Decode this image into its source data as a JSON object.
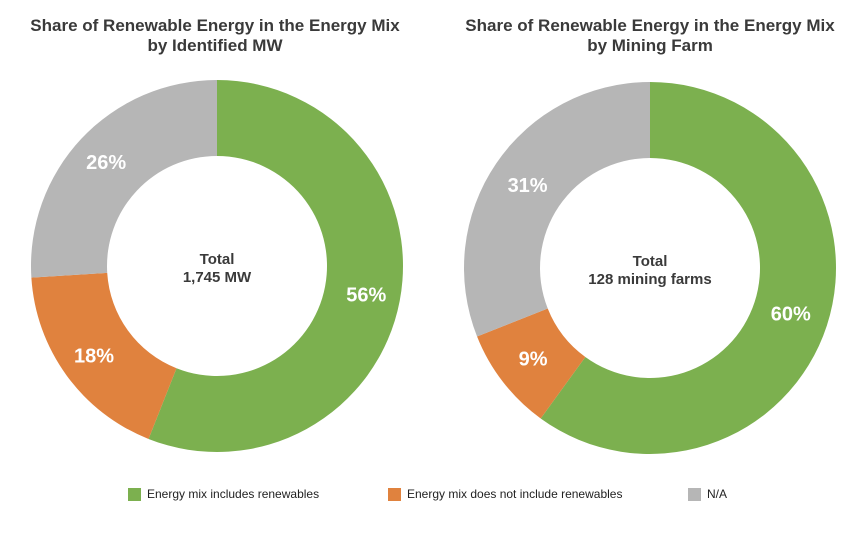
{
  "colors": {
    "renewables": "#7cb04f",
    "no_renewables": "#e0823e",
    "na": "#b6b6b6"
  },
  "legend": [
    {
      "key": "renewables",
      "label": "Energy mix includes renewables"
    },
    {
      "key": "no_renewables",
      "label": "Energy mix does not include renewables"
    },
    {
      "key": "na",
      "label": "N/A"
    }
  ],
  "chart_data": [
    {
      "type": "pie",
      "title": [
        "Share of Renewable Energy in the Energy Mix",
        "by Identified MW"
      ],
      "center_label": [
        "Total",
        "1,745 MW"
      ],
      "slices": [
        {
          "key": "renewables",
          "value": 56,
          "label": "56%"
        },
        {
          "key": "no_renewables",
          "value": 18,
          "label": "18%"
        },
        {
          "key": "na",
          "value": 26,
          "label": "26%"
        }
      ]
    },
    {
      "type": "pie",
      "title": [
        "Share of Renewable Energy in the Energy Mix",
        "by Mining Farm"
      ],
      "center_label": [
        "Total",
        "128 mining farms"
      ],
      "slices": [
        {
          "key": "renewables",
          "value": 60,
          "label": "60%"
        },
        {
          "key": "no_renewables",
          "value": 9,
          "label": "9%"
        },
        {
          "key": "na",
          "value": 31,
          "label": "31%"
        }
      ]
    }
  ]
}
